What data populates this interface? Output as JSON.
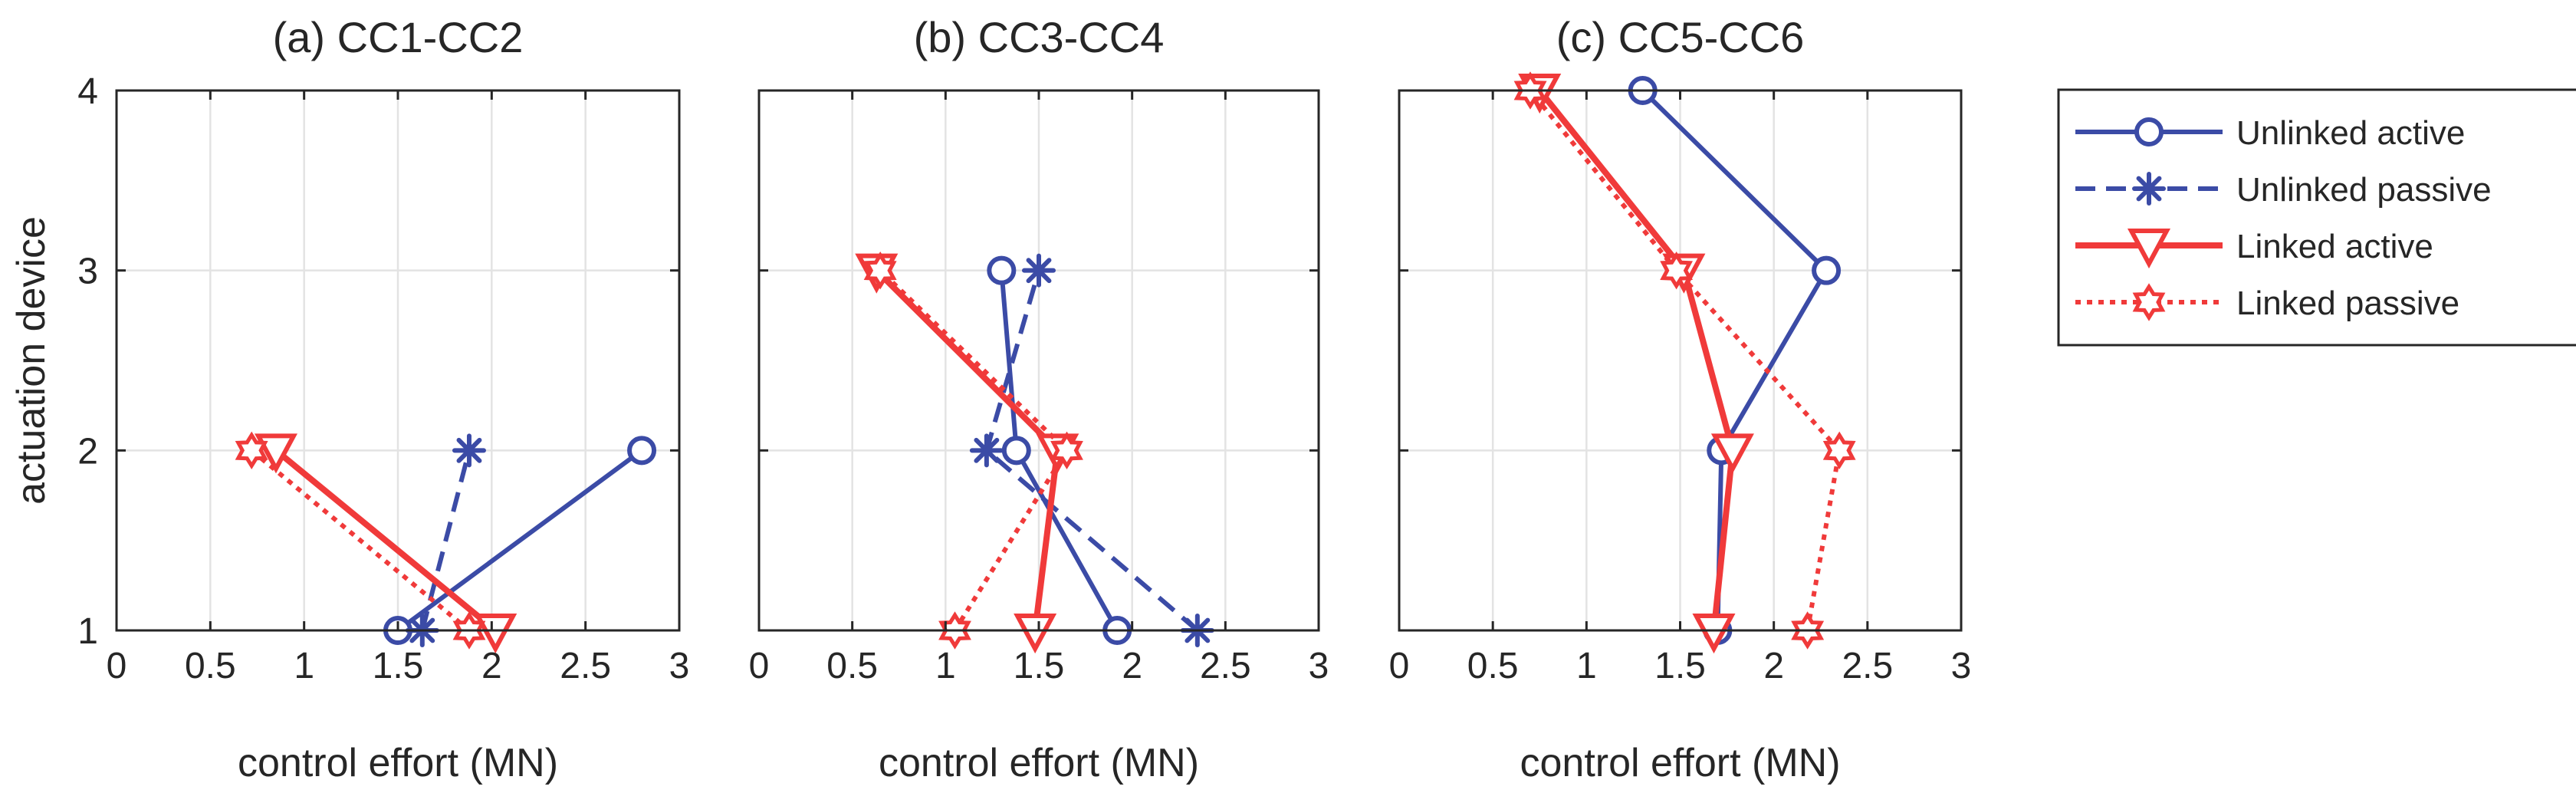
{
  "chart_data": [
    {
      "type": "line",
      "title": "(a) CC1-CC2",
      "xlabel": "control effort (MN)",
      "ylabel": "actuation device",
      "xlim": [
        0,
        3
      ],
      "ylim": [
        1,
        4
      ],
      "xticks": [
        0,
        0.5,
        1,
        1.5,
        2,
        2.5,
        3
      ],
      "xtick_labels": [
        "0",
        "0.5",
        "1",
        "1.5",
        "2",
        "2.5",
        "3"
      ],
      "yticks": [
        1,
        2,
        3,
        4
      ],
      "ytick_labels": [
        "1",
        "2",
        "3",
        "4"
      ],
      "grid": true,
      "series": [
        {
          "name": "Unlinked active",
          "style": "solid",
          "marker": "circle",
          "color": "#3B4BA6",
          "x": [
            1.5,
            2.8
          ],
          "y": [
            1,
            2
          ]
        },
        {
          "name": "Unlinked passive",
          "style": "dashed",
          "marker": "asterisk",
          "color": "#3B4BA6",
          "x": [
            1.63,
            1.88
          ],
          "y": [
            1,
            2
          ]
        },
        {
          "name": "Linked active",
          "style": "solid",
          "marker": "triangle-down",
          "color": "#F03A3A",
          "x": [
            2.02,
            0.85
          ],
          "y": [
            1,
            2
          ]
        },
        {
          "name": "Linked passive",
          "style": "dotted",
          "marker": "hexagram",
          "color": "#F03A3A",
          "x": [
            1.88,
            0.72
          ],
          "y": [
            1,
            2
          ]
        }
      ]
    },
    {
      "type": "line",
      "title": "(b) CC3-CC4",
      "xlabel": "control effort (MN)",
      "ylabel": "",
      "xlim": [
        0,
        3
      ],
      "ylim": [
        1,
        4
      ],
      "xticks": [
        0,
        0.5,
        1,
        1.5,
        2,
        2.5,
        3
      ],
      "xtick_labels": [
        "0",
        "0.5",
        "1",
        "1.5",
        "2",
        "2.5",
        "3"
      ],
      "yticks": [
        1,
        2,
        3,
        4
      ],
      "ytick_labels": [],
      "grid": true,
      "series": [
        {
          "name": "Unlinked active",
          "style": "solid",
          "marker": "circle",
          "color": "#3B4BA6",
          "x": [
            1.92,
            1.38,
            1.3
          ],
          "y": [
            1,
            2,
            3
          ]
        },
        {
          "name": "Unlinked passive",
          "style": "dashed",
          "marker": "asterisk",
          "color": "#3B4BA6",
          "x": [
            2.35,
            1.22,
            1.5
          ],
          "y": [
            1,
            2,
            3
          ]
        },
        {
          "name": "Linked active",
          "style": "solid",
          "marker": "triangle-down",
          "color": "#F03A3A",
          "x": [
            1.48,
            1.6,
            0.63
          ],
          "y": [
            1,
            2,
            3
          ]
        },
        {
          "name": "Linked passive",
          "style": "dotted",
          "marker": "hexagram",
          "color": "#F03A3A",
          "x": [
            1.05,
            1.65,
            0.65
          ],
          "y": [
            1,
            2,
            3
          ]
        }
      ]
    },
    {
      "type": "line",
      "title": "(c) CC5-CC6",
      "xlabel": "control effort (MN)",
      "ylabel": "",
      "xlim": [
        0,
        3
      ],
      "ylim": [
        1,
        4
      ],
      "xticks": [
        0,
        0.5,
        1,
        1.5,
        2,
        2.5,
        3
      ],
      "xtick_labels": [
        "0",
        "0.5",
        "1",
        "1.5",
        "2",
        "2.5",
        "3"
      ],
      "yticks": [
        1,
        2,
        3,
        4
      ],
      "ytick_labels": [],
      "grid": true,
      "series": [
        {
          "name": "Unlinked active",
          "style": "solid",
          "marker": "circle",
          "color": "#3B4BA6",
          "x": [
            1.7,
            1.72,
            2.28,
            1.3
          ],
          "y": [
            1,
            2,
            3,
            4
          ]
        },
        {
          "name": "Unlinked passive",
          "style": "dashed",
          "marker": "asterisk",
          "color": "#3B4BA6",
          "x": [],
          "y": []
        },
        {
          "name": "Linked active",
          "style": "solid",
          "marker": "triangle-down",
          "color": "#F03A3A",
          "x": [
            1.68,
            1.78,
            1.52,
            0.75
          ],
          "y": [
            1,
            2,
            3,
            4
          ]
        },
        {
          "name": "Linked passive",
          "style": "dotted",
          "marker": "hexagram",
          "color": "#F03A3A",
          "x": [
            2.18,
            2.35,
            1.48,
            0.7
          ],
          "y": [
            1,
            2,
            3,
            4
          ]
        }
      ]
    }
  ],
  "legend": {
    "entries": [
      "Unlinked active",
      "Unlinked passive",
      "Linked active",
      "Linked passive"
    ]
  }
}
